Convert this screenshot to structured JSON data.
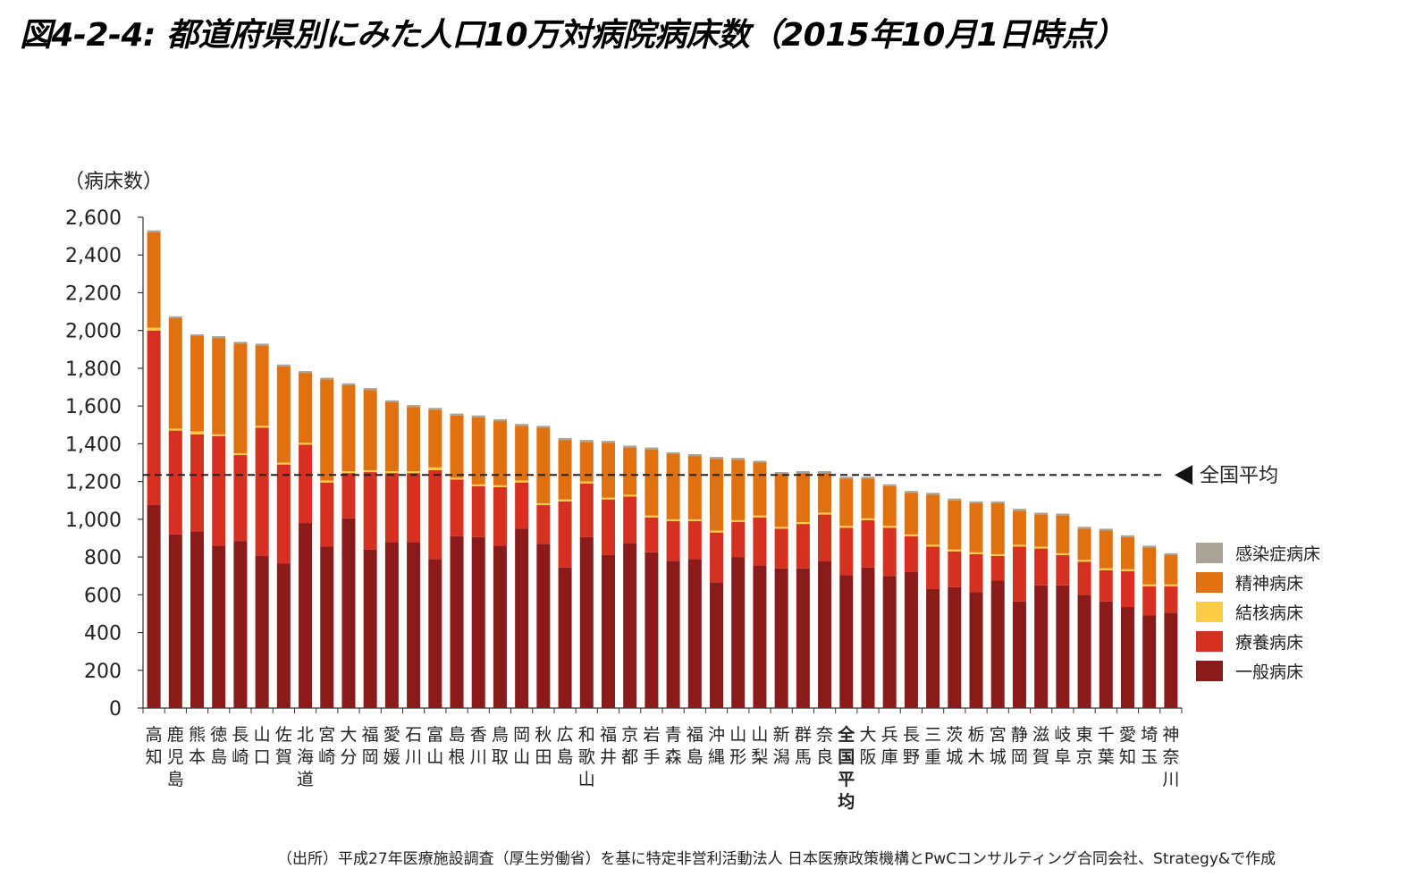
{
  "title": "図4-2-4: 都道府県別にみた人口10万対病院病床数（2015年10月1日時点）",
  "source": "（出所）平成27年医療施設調査（厚生労働省）を基に特定非営利活動法人 日本医療政策機構とPwCコンサルティング合同会社、Strategy&で作成",
  "colors": {
    "感染症病床": "#a8a395",
    "精神病床": "#e07010",
    "結核病床": "#ffcc44",
    "療養病床": "#d63020",
    "一般病床": "#8b1a1a"
  },
  "chart_data": {
    "type": "bar",
    "stacked": true,
    "ylabel": "（病床数）",
    "ylim": [
      0,
      2600
    ],
    "yticks": [
      "0",
      "200",
      "400",
      "600",
      "800",
      "1,000",
      "1,200",
      "1,400",
      "1,600",
      "1,800",
      "2,000",
      "2,200",
      "2,400",
      "2,600"
    ],
    "categories": [
      "高知",
      "鹿児島",
      "熊本",
      "徳島",
      "長崎",
      "山口",
      "佐賀",
      "北海道",
      "宮崎",
      "大分",
      "福岡",
      "愛媛",
      "石川",
      "富山",
      "島根",
      "香川",
      "鳥取",
      "岡山",
      "秋田",
      "広島",
      "和歌山",
      "福井",
      "京都",
      "岩手",
      "青森",
      "福島",
      "沖縄",
      "山形",
      "山梨",
      "新潟",
      "群馬",
      "奈良",
      "全国平均",
      "大阪",
      "兵庫",
      "長野",
      "三重",
      "茨城",
      "栃木",
      "宮城",
      "静岡",
      "滋賀",
      "岐阜",
      "東京",
      "千葉",
      "愛知",
      "埼玉",
      "神奈川"
    ],
    "highlight_category": "全国平均",
    "legend": [
      "感染症病床",
      "精神病床",
      "結核病床",
      "療養病床",
      "一般病床"
    ],
    "series": [
      {
        "name": "一般病床",
        "values": [
          1075,
          920,
          935,
          860,
          885,
          805,
          765,
          980,
          855,
          1005,
          840,
          880,
          880,
          790,
          910,
          905,
          860,
          950,
          870,
          745,
          905,
          810,
          875,
          825,
          780,
          790,
          665,
          800,
          755,
          740,
          740,
          780,
          705,
          745,
          700,
          720,
          630,
          640,
          615,
          675,
          565,
          650,
          650,
          600,
          565,
          535,
          490,
          505
        ]
      },
      {
        "name": "療養病床",
        "values": [
          925,
          550,
          515,
          580,
          455,
          680,
          525,
          415,
          340,
          240,
          410,
          365,
          365,
          470,
          300,
          270,
          310,
          245,
          205,
          350,
          285,
          295,
          245,
          185,
          210,
          200,
          265,
          185,
          255,
          210,
          235,
          245,
          250,
          250,
          255,
          190,
          225,
          190,
          200,
          130,
          290,
          195,
          160,
          175,
          165,
          190,
          155,
          140
        ]
      },
      {
        "name": "結核病床",
        "values": [
          15,
          10,
          15,
          10,
          10,
          10,
          10,
          10,
          10,
          10,
          10,
          10,
          10,
          15,
          10,
          10,
          10,
          10,
          10,
          10,
          10,
          10,
          10,
          10,
          10,
          10,
          10,
          10,
          10,
          10,
          10,
          10,
          10,
          10,
          10,
          10,
          10,
          10,
          10,
          10,
          10,
          10,
          10,
          10,
          10,
          10,
          10,
          10
        ]
      },
      {
        "name": "精神病床",
        "values": [
          505,
          585,
          505,
          510,
          580,
          425,
          510,
          370,
          535,
          455,
          425,
          365,
          340,
          305,
          330,
          355,
          340,
          290,
          400,
          315,
          210,
          290,
          250,
          350,
          345,
          335,
          380,
          320,
          280,
          280,
          260,
          210,
          250,
          210,
          210,
          220,
          265,
          260,
          260,
          270,
          180,
          170,
          200,
          165,
          200,
          170,
          195,
          155
        ]
      },
      {
        "name": "感染症病床",
        "values": [
          10,
          10,
          10,
          10,
          10,
          10,
          10,
          10,
          10,
          10,
          10,
          10,
          10,
          10,
          10,
          10,
          10,
          10,
          10,
          10,
          10,
          10,
          10,
          10,
          10,
          10,
          10,
          10,
          10,
          10,
          10,
          10,
          10,
          10,
          10,
          10,
          10,
          10,
          10,
          10,
          10,
          10,
          10,
          10,
          10,
          10,
          10,
          10
        ]
      }
    ],
    "reference_line": {
      "label": "全国平均",
      "value": 1235
    }
  }
}
